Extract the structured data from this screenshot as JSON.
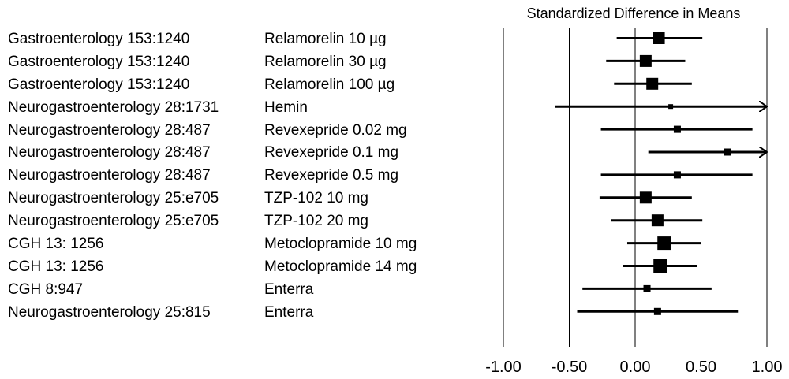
{
  "chart_data": {
    "type": "forest",
    "title": "Standardized Difference in Means",
    "xlim": [
      -1.0,
      1.0
    ],
    "x_ticks": [
      -1.0,
      -0.5,
      0.0,
      0.5,
      1.0
    ],
    "x_tick_labels": [
      "-1.00",
      "-0.50",
      "0.00",
      "0.50",
      "1.00"
    ],
    "gridlines": "vertical at each tick",
    "rows": [
      {
        "source": "Gastroenterology 153:1240",
        "treatment": "Relamorelin 10 µg",
        "estimate": 0.18,
        "lower": -0.14,
        "upper": 0.51,
        "weight": "large"
      },
      {
        "source": "Gastroenterology 153:1240",
        "treatment": "Relamorelin 30 µg",
        "estimate": 0.08,
        "lower": -0.22,
        "upper": 0.38,
        "weight": "large"
      },
      {
        "source": "Gastroenterology 153:1240",
        "treatment": "Relamorelin 100 µg",
        "estimate": 0.13,
        "lower": -0.16,
        "upper": 0.43,
        "weight": "large"
      },
      {
        "source": "Neurogastroenterology 28:1731",
        "treatment": "Hemin",
        "estimate": 0.27,
        "lower": -0.61,
        "upper": 1.0,
        "weight": "tiny",
        "truncated_upper": true
      },
      {
        "source": "Neurogastroenterology 28:487",
        "treatment": "Revexepride 0.02 mg",
        "estimate": 0.32,
        "lower": -0.26,
        "upper": 0.89,
        "weight": "small"
      },
      {
        "source": "Neurogastroenterology 28:487",
        "treatment": "Revexepride 0.1 mg",
        "estimate": 0.7,
        "lower": 0.1,
        "upper": 1.0,
        "weight": "small",
        "truncated_upper": true
      },
      {
        "source": "Neurogastroenterology 28:487",
        "treatment": "Revexepride 0.5 mg",
        "estimate": 0.32,
        "lower": -0.26,
        "upper": 0.89,
        "weight": "small"
      },
      {
        "source": "Neurogastroenterology 25:e705",
        "treatment": "TZP-102  10 mg",
        "estimate": 0.08,
        "lower": -0.27,
        "upper": 0.43,
        "weight": "large"
      },
      {
        "source": "Neurogastroenterology 25:e705",
        "treatment": "TZP-102  20 mg",
        "estimate": 0.17,
        "lower": -0.18,
        "upper": 0.51,
        "weight": "large"
      },
      {
        "source": "CGH 13: 1256",
        "treatment": "Metoclopramide 10 mg",
        "estimate": 0.22,
        "lower": -0.06,
        "upper": 0.5,
        "weight": "xlarge"
      },
      {
        "source": "CGH 13: 1256",
        "treatment": "Metoclopramide 14 mg",
        "estimate": 0.19,
        "lower": -0.09,
        "upper": 0.47,
        "weight": "xlarge"
      },
      {
        "source": "CGH 8:947",
        "treatment": "Enterra",
        "estimate": 0.09,
        "lower": -0.4,
        "upper": 0.58,
        "weight": "small"
      },
      {
        "source": "Neurogastroenterology 25:815",
        "treatment": "Enterra",
        "estimate": 0.17,
        "lower": -0.44,
        "upper": 0.78,
        "weight": "small"
      }
    ]
  }
}
